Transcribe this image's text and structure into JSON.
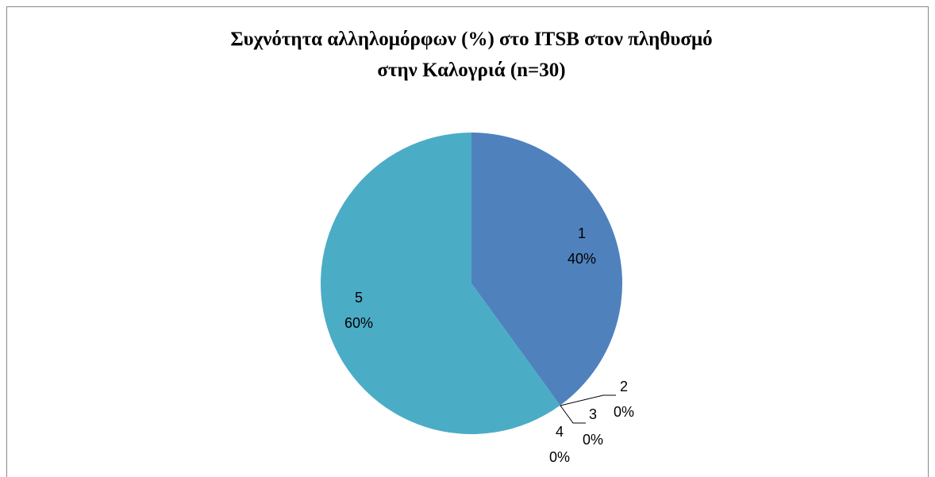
{
  "chart_data": {
    "type": "pie",
    "title": "Συχνότητα αλληλομόρφων (%) στο ITSB στον πληθυσμό στην Καλογριά (n=30)",
    "categories": [
      "1",
      "2",
      "3",
      "4",
      "5"
    ],
    "values": [
      40,
      0,
      0,
      0,
      60
    ],
    "value_labels": [
      "40%",
      "0%",
      "0%",
      "0%",
      "60%"
    ],
    "colors": [
      "#4f81bd",
      "#c0504d",
      "#9bbb59",
      "#8064a2",
      "#4bacc6"
    ]
  }
}
